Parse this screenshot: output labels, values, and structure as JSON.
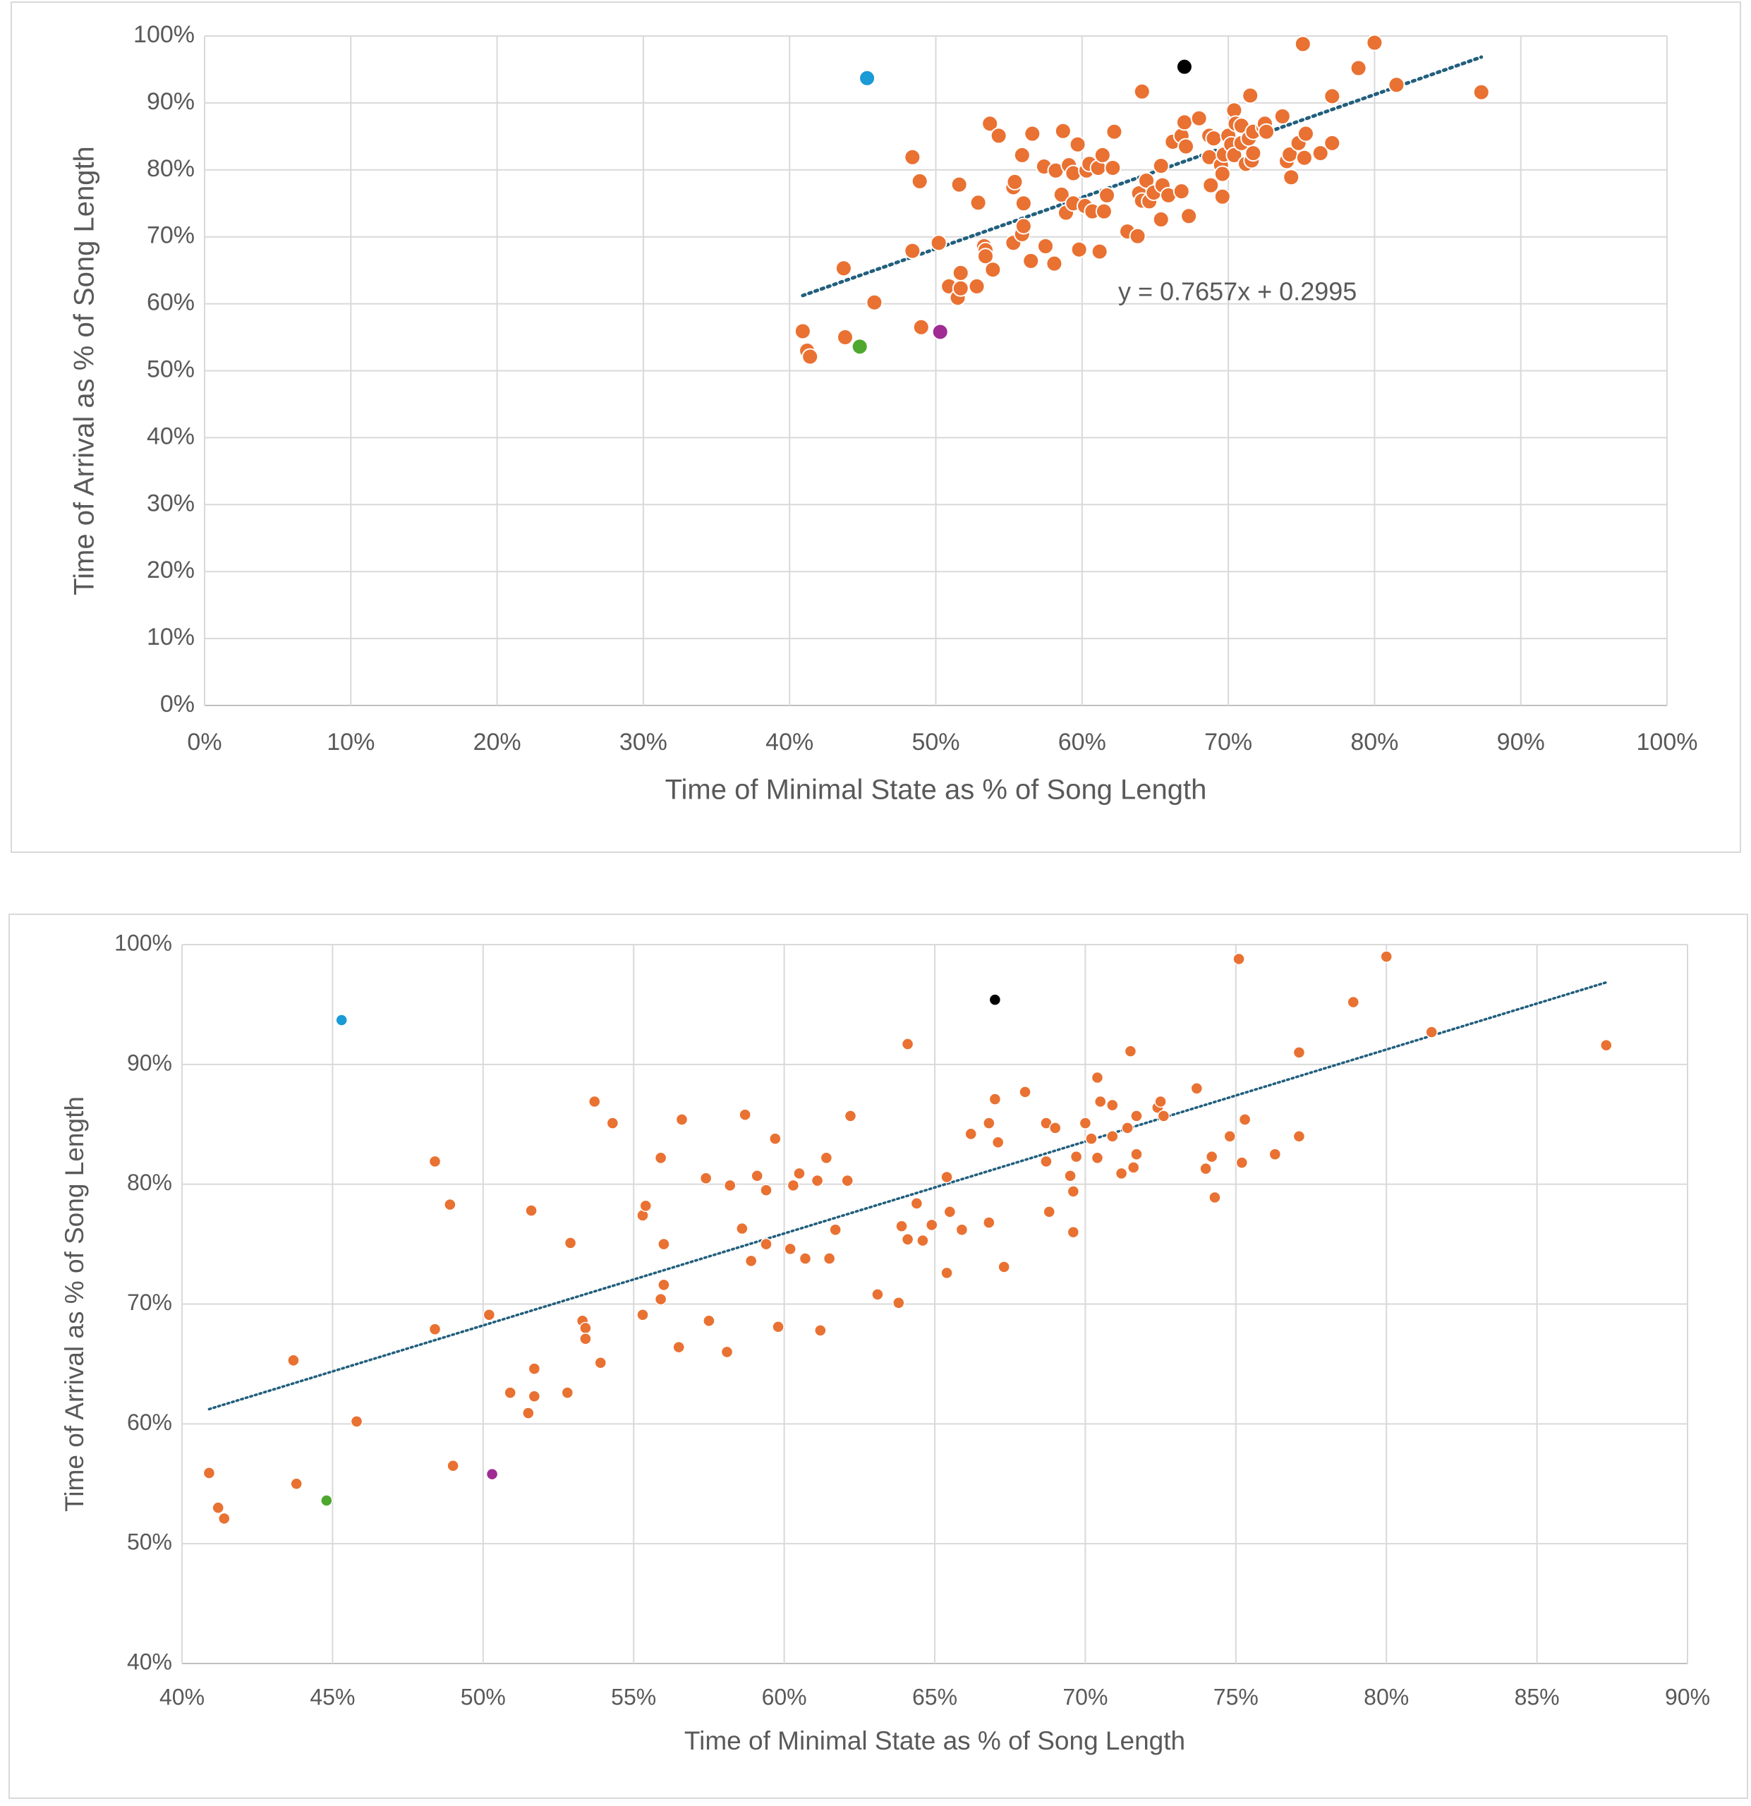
{
  "chart_data": [
    {
      "type": "scatter",
      "x_label": "Time of Minimal State as % of Song Length",
      "y_label": "Time of Arrival as % of Song Length",
      "annotation": "y = 0.7657x + 0.2995",
      "xlim": [
        0,
        100
      ],
      "ylim": [
        0,
        100
      ],
      "xticks": [
        {
          "value": 0,
          "label": "0%"
        },
        {
          "value": 10,
          "label": "10%"
        },
        {
          "value": 20,
          "label": "20%"
        },
        {
          "value": 30,
          "label": "30%"
        },
        {
          "value": 40,
          "label": "40%"
        },
        {
          "value": 50,
          "label": "50%"
        },
        {
          "value": 60,
          "label": "60%"
        },
        {
          "value": 70,
          "label": "70%"
        },
        {
          "value": 80,
          "label": "80%"
        },
        {
          "value": 90,
          "label": "90%"
        },
        {
          "value": 100,
          "label": "100%"
        }
      ],
      "yticks": [
        {
          "value": 0,
          "label": "0%"
        },
        {
          "value": 10,
          "label": "10%"
        },
        {
          "value": 20,
          "label": "20%"
        },
        {
          "value": 30,
          "label": "30%"
        },
        {
          "value": 40,
          "label": "40%"
        },
        {
          "value": 50,
          "label": "50%"
        },
        {
          "value": 60,
          "label": "60%"
        },
        {
          "value": 70,
          "label": "70%"
        },
        {
          "value": 80,
          "label": "80%"
        },
        {
          "value": 90,
          "label": "90%"
        },
        {
          "value": 100,
          "label": "100%"
        }
      ],
      "grid": true,
      "trendline_color": "#215f7d",
      "series": [
        {
          "color": "#e97132",
          "x": [
            40.9,
            41.2,
            41.4,
            43.7,
            43.8,
            45.8,
            48.4,
            48.4,
            48.9,
            49.0,
            50.2,
            50.9,
            51.5,
            51.6,
            51.7,
            51.7,
            52.8,
            52.9,
            53.3,
            53.4,
            53.4,
            53.7,
            53.9,
            54.3,
            55.3,
            55.3,
            55.4,
            55.9,
            55.9,
            56.0,
            56.0,
            56.5,
            56.6,
            57.4,
            57.5,
            58.1,
            58.2,
            58.6,
            58.7,
            58.9,
            59.1,
            59.4,
            59.4,
            59.7,
            59.8,
            60.2,
            60.3,
            60.5,
            60.7,
            61.1,
            61.2,
            61.4,
            61.5,
            61.7,
            62.1,
            62.2,
            63.1,
            63.8,
            63.9,
            64.1,
            64.1,
            64.4,
            64.6,
            64.9,
            65.4,
            65.4,
            65.5,
            65.9,
            66.2,
            66.8,
            66.8,
            67.0,
            67.1,
            67.3,
            68.0,
            68.7,
            68.7,
            68.8,
            69.0,
            69.5,
            69.6,
            69.6,
            69.7,
            70.0,
            70.2,
            70.4,
            70.4,
            70.5,
            70.9,
            70.9,
            71.2,
            71.4,
            71.5,
            71.6,
            71.7,
            71.7,
            72.4,
            72.5,
            72.6,
            73.7,
            74.0,
            74.2,
            74.3,
            74.8,
            75.1,
            75.2,
            75.3,
            76.3,
            77.1,
            77.1,
            78.9,
            80.0,
            81.5,
            87.3
          ],
          "values": [
            55.9,
            53.0,
            52.1,
            65.3,
            55.0,
            60.2,
            81.9,
            67.9,
            78.3,
            56.5,
            69.1,
            62.6,
            60.9,
            77.8,
            62.3,
            64.6,
            62.6,
            75.1,
            68.6,
            68.0,
            67.1,
            86.9,
            65.1,
            85.1,
            69.1,
            77.4,
            78.2,
            70.4,
            82.2,
            71.6,
            75.0,
            66.4,
            85.4,
            80.5,
            68.6,
            66.0,
            79.9,
            76.3,
            85.8,
            73.6,
            80.7,
            79.5,
            75.0,
            83.8,
            68.1,
            74.6,
            79.9,
            80.9,
            73.8,
            80.3,
            67.8,
            82.2,
            73.8,
            76.2,
            80.3,
            85.7,
            70.8,
            70.1,
            76.5,
            91.7,
            75.4,
            78.4,
            75.3,
            76.6,
            80.6,
            72.6,
            77.7,
            76.2,
            84.2,
            76.8,
            85.1,
            87.1,
            83.5,
            73.1,
            87.7,
            85.1,
            81.9,
            77.7,
            84.7,
            80.7,
            79.4,
            76.0,
            82.3,
            85.1,
            83.8,
            88.9,
            82.2,
            86.9,
            84.0,
            86.6,
            80.9,
            84.7,
            91.1,
            81.4,
            85.7,
            82.5,
            86.4,
            86.9,
            85.7,
            88.0,
            81.3,
            82.3,
            78.9,
            84.0,
            98.8,
            81.8,
            85.4,
            82.5,
            84.0,
            91.0,
            95.2,
            99.0,
            92.7,
            91.6
          ]
        },
        {
          "color": "#1a9ad6",
          "x": [
            45.3
          ],
          "values": [
            93.7
          ]
        },
        {
          "color": "#4ea72e",
          "x": [
            44.8
          ],
          "values": [
            53.6
          ]
        },
        {
          "color": "#a02b93",
          "x": [
            50.3
          ],
          "values": [
            55.8
          ]
        },
        {
          "color": "#000000",
          "x": [
            67.0
          ],
          "values": [
            95.4
          ]
        }
      ]
    },
    {
      "type": "scatter",
      "x_label": "Time of Minimal State as % of Song Length",
      "y_label": "Time of Arrival as % of Song Length",
      "xlim": [
        40,
        90
      ],
      "ylim": [
        40,
        100
      ],
      "xticks": [
        {
          "value": 40,
          "label": "40%"
        },
        {
          "value": 45,
          "label": "45%"
        },
        {
          "value": 50,
          "label": "50%"
        },
        {
          "value": 55,
          "label": "55%"
        },
        {
          "value": 60,
          "label": "60%"
        },
        {
          "value": 65,
          "label": "65%"
        },
        {
          "value": 70,
          "label": "70%"
        },
        {
          "value": 75,
          "label": "75%"
        },
        {
          "value": 80,
          "label": "80%"
        },
        {
          "value": 85,
          "label": "85%"
        },
        {
          "value": 90,
          "label": "90%"
        }
      ],
      "yticks": [
        {
          "value": 40,
          "label": "40%"
        },
        {
          "value": 50,
          "label": "50%"
        },
        {
          "value": 60,
          "label": "60%"
        },
        {
          "value": 70,
          "label": "70%"
        },
        {
          "value": 80,
          "label": "80%"
        },
        {
          "value": 90,
          "label": "90%"
        },
        {
          "value": 100,
          "label": "100%"
        }
      ],
      "grid": true,
      "trendline_color": "#215f7d",
      "series": [
        {
          "color": "#e97132",
          "x": [
            40.9,
            41.2,
            41.4,
            43.7,
            43.8,
            45.8,
            48.4,
            48.4,
            48.9,
            49.0,
            50.2,
            50.9,
            51.5,
            51.6,
            51.7,
            51.7,
            52.8,
            52.9,
            53.3,
            53.4,
            53.4,
            53.7,
            53.9,
            54.3,
            55.3,
            55.3,
            55.4,
            55.9,
            55.9,
            56.0,
            56.0,
            56.5,
            56.6,
            57.4,
            57.5,
            58.1,
            58.2,
            58.6,
            58.7,
            58.9,
            59.1,
            59.4,
            59.4,
            59.7,
            59.8,
            60.2,
            60.3,
            60.5,
            60.7,
            61.1,
            61.2,
            61.4,
            61.5,
            61.7,
            62.1,
            62.2,
            63.1,
            63.8,
            63.9,
            64.1,
            64.1,
            64.4,
            64.6,
            64.9,
            65.4,
            65.4,
            65.5,
            65.9,
            66.2,
            66.8,
            66.8,
            67.0,
            67.1,
            67.3,
            68.0,
            68.7,
            68.7,
            68.8,
            69.0,
            69.5,
            69.6,
            69.6,
            69.7,
            70.0,
            70.2,
            70.4,
            70.4,
            70.5,
            70.9,
            70.9,
            71.2,
            71.4,
            71.5,
            71.6,
            71.7,
            71.7,
            72.4,
            72.5,
            72.6,
            73.7,
            74.0,
            74.2,
            74.3,
            74.8,
            75.1,
            75.2,
            75.3,
            76.3,
            77.1,
            77.1,
            78.9,
            80.0,
            81.5,
            87.3
          ],
          "values": [
            55.9,
            53.0,
            52.1,
            65.3,
            55.0,
            60.2,
            81.9,
            67.9,
            78.3,
            56.5,
            69.1,
            62.6,
            60.9,
            77.8,
            62.3,
            64.6,
            62.6,
            75.1,
            68.6,
            68.0,
            67.1,
            86.9,
            65.1,
            85.1,
            69.1,
            77.4,
            78.2,
            70.4,
            82.2,
            71.6,
            75.0,
            66.4,
            85.4,
            80.5,
            68.6,
            66.0,
            79.9,
            76.3,
            85.8,
            73.6,
            80.7,
            79.5,
            75.0,
            83.8,
            68.1,
            74.6,
            79.9,
            80.9,
            73.8,
            80.3,
            67.8,
            82.2,
            73.8,
            76.2,
            80.3,
            85.7,
            70.8,
            70.1,
            76.5,
            91.7,
            75.4,
            78.4,
            75.3,
            76.6,
            80.6,
            72.6,
            77.7,
            76.2,
            84.2,
            76.8,
            85.1,
            87.1,
            83.5,
            73.1,
            87.7,
            85.1,
            81.9,
            77.7,
            84.7,
            80.7,
            79.4,
            76.0,
            82.3,
            85.1,
            83.8,
            88.9,
            82.2,
            86.9,
            84.0,
            86.6,
            80.9,
            84.7,
            91.1,
            81.4,
            85.7,
            82.5,
            86.4,
            86.9,
            85.7,
            88.0,
            81.3,
            82.3,
            78.9,
            84.0,
            98.8,
            81.8,
            85.4,
            82.5,
            84.0,
            91.0,
            95.2,
            99.0,
            92.7,
            91.6
          ]
        },
        {
          "color": "#1a9ad6",
          "x": [
            45.3
          ],
          "values": [
            93.7
          ]
        },
        {
          "color": "#4ea72e",
          "x": [
            44.8
          ],
          "values": [
            53.6
          ]
        },
        {
          "color": "#a02b93",
          "x": [
            50.3
          ],
          "values": [
            55.8
          ]
        },
        {
          "color": "#000000",
          "x": [
            67.0
          ],
          "values": [
            95.4
          ]
        }
      ]
    }
  ]
}
